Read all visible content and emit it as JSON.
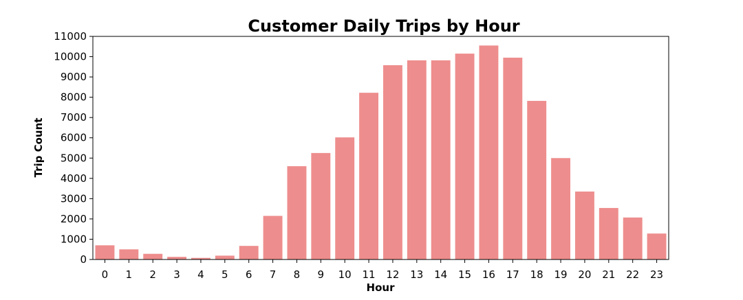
{
  "chart_data": {
    "type": "bar",
    "title": "Customer Daily Trips by Hour",
    "xlabel": "Hour",
    "ylabel": "Trip Count",
    "categories": [
      "0",
      "1",
      "2",
      "3",
      "4",
      "5",
      "6",
      "7",
      "8",
      "9",
      "10",
      "11",
      "12",
      "13",
      "14",
      "15",
      "16",
      "17",
      "18",
      "19",
      "20",
      "21",
      "22",
      "23"
    ],
    "values": [
      700,
      500,
      280,
      130,
      80,
      190,
      670,
      2150,
      4600,
      5250,
      6020,
      8220,
      9580,
      9820,
      9820,
      10150,
      10550,
      9950,
      7820,
      5000,
      3350,
      2540,
      2070,
      1280
    ],
    "ylim": [
      0,
      11000
    ],
    "yticks": [
      0,
      1000,
      2000,
      3000,
      4000,
      5000,
      6000,
      7000,
      8000,
      9000,
      10000,
      11000
    ],
    "grid": false,
    "legend": "none",
    "bar_color": "#ee8d8d"
  }
}
